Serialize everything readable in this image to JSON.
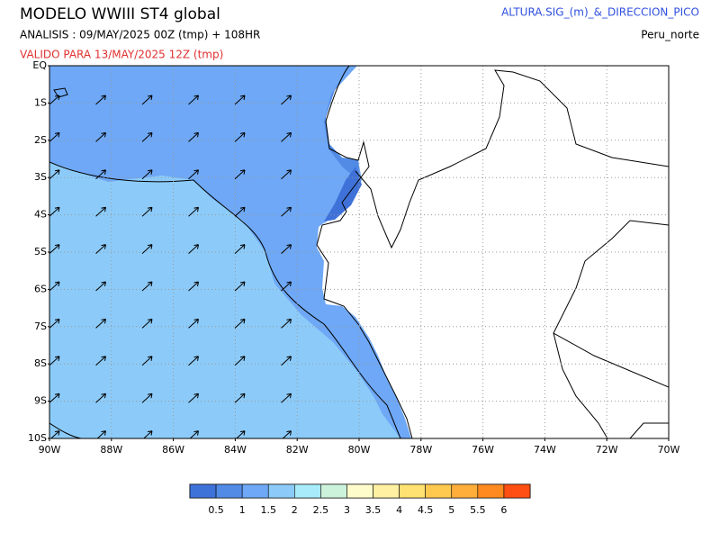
{
  "header": {
    "title": "MODELO WWIII ST4 global",
    "analysis": "ANALISIS : 09/MAY/2025 00Z  (tmp) + 108HR",
    "valid": "VALIDO PARA  13/MAY/2025 12Z  (tmp)",
    "variable": "ALTURA.SIG_(m)_&_DIRECCION_PICO",
    "region": "Peru_norte"
  },
  "map": {
    "lat_labels": [
      "EQ",
      "1S",
      "2S",
      "3S",
      "4S",
      "5S",
      "6S",
      "7S",
      "8S",
      "9S",
      "10S"
    ],
    "lon_labels": [
      "90W",
      "88W",
      "86W",
      "84W",
      "82W",
      "80W",
      "78W",
      "76W",
      "74W",
      "72W",
      "70W"
    ]
  },
  "colorbar": {
    "levels": [
      0.5,
      1,
      1.5,
      2,
      2.5,
      3,
      3.5,
      4,
      4.5,
      5,
      5.5,
      6
    ],
    "colors": [
      "#3f72d9",
      "#528be6",
      "#6ea8f6",
      "#8ccbf9",
      "#a8ecfb",
      "#ccf2dc",
      "#fffccb",
      "#fff0a2",
      "#ffe271",
      "#ffc94f",
      "#ffae3c",
      "#ff8a1f",
      "#ff4f12"
    ]
  }
}
